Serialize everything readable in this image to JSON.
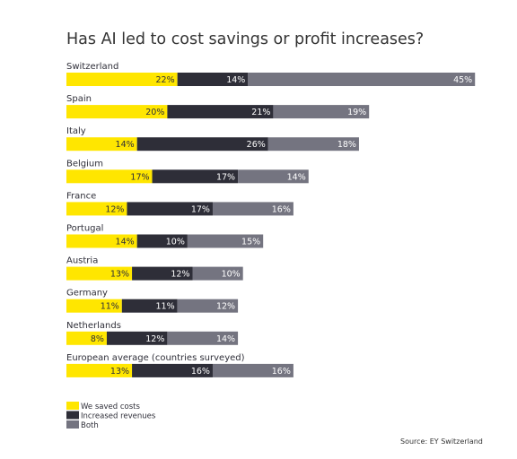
{
  "chart_data": {
    "type": "bar",
    "orientation": "horizontal",
    "stacked": true,
    "title": "Has AI led to cost savings or profit increases?",
    "source": "Source: EY Switzerland",
    "value_suffix": "%",
    "categories": [
      "Switzerland",
      "Spain",
      "Italy",
      "Belgium",
      "France",
      "Portugal",
      "Austria",
      "Germany",
      "Netherlands",
      "European average (countries surveyed)"
    ],
    "series": [
      {
        "name": "We saved costs",
        "color": "#ffe600",
        "label_color": "#2e2e38",
        "values": [
          22,
          20,
          14,
          17,
          12,
          14,
          13,
          11,
          8,
          13
        ]
      },
      {
        "name": "Increased revenues",
        "color": "#2e2e38",
        "label_color": "#ffffff",
        "values": [
          14,
          21,
          26,
          17,
          17,
          10,
          12,
          11,
          12,
          16
        ]
      },
      {
        "name": "Both",
        "color": "#747480",
        "label_color": "#ffffff",
        "values": [
          45,
          19,
          18,
          14,
          16,
          15,
          10,
          12,
          14,
          16
        ]
      }
    ],
    "legend_position": "bottom-left",
    "grid": false
  }
}
